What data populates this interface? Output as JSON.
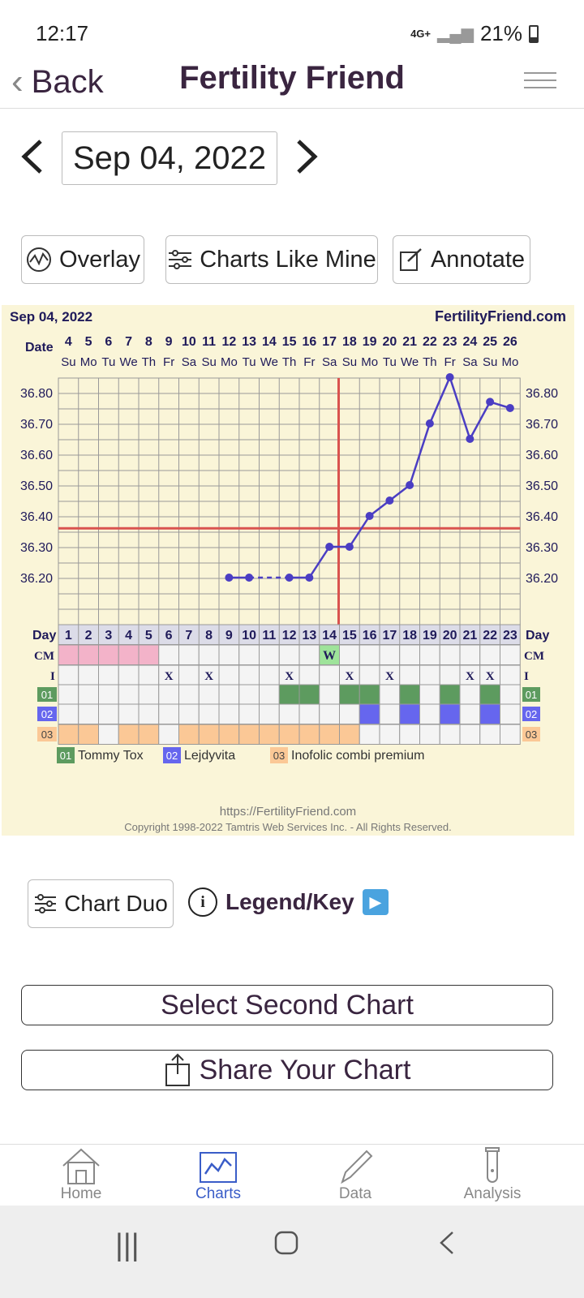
{
  "status": {
    "time": "12:17",
    "network": "4G+",
    "battery": "21%"
  },
  "header": {
    "back_label": "Back",
    "title": "Fertility Friend"
  },
  "date_nav": {
    "date": "Sep 04, 2022"
  },
  "actions": {
    "overlay": "Overlay",
    "charts_like_mine": "Charts Like Mine",
    "annotate": "Annotate"
  },
  "chart_data": {
    "type": "line",
    "title": "Sep 04, 2022",
    "brand": "FertilityFriend.com",
    "date_label": "Date",
    "dates": [
      "4",
      "5",
      "6",
      "7",
      "8",
      "9",
      "10",
      "11",
      "12",
      "13",
      "14",
      "15",
      "16",
      "17",
      "18",
      "19",
      "20",
      "21",
      "22",
      "23",
      "24",
      "25",
      "26"
    ],
    "weekdays": [
      "Su",
      "Mo",
      "Tu",
      "We",
      "Th",
      "Fr",
      "Sa",
      "Su",
      "Mo",
      "Tu",
      "We",
      "Th",
      "Fr",
      "Sa",
      "Su",
      "Mo",
      "Tu",
      "We",
      "Th",
      "Fr",
      "Sa",
      "Su",
      "Mo"
    ],
    "day_label": "Day",
    "days": [
      "1",
      "2",
      "3",
      "4",
      "5",
      "6",
      "7",
      "8",
      "9",
      "10",
      "11",
      "12",
      "13",
      "14",
      "15",
      "16",
      "17",
      "18",
      "19",
      "20",
      "21",
      "22",
      "23"
    ],
    "y_ticks": [
      "36.80",
      "36.70",
      "36.60",
      "36.50",
      "36.40",
      "36.30",
      "36.20"
    ],
    "ylim": [
      36.1,
      36.95
    ],
    "temps": [
      null,
      null,
      null,
      null,
      null,
      null,
      null,
      null,
      36.2,
      36.2,
      null,
      36.2,
      36.2,
      36.3,
      36.3,
      36.4,
      36.45,
      36.5,
      36.7,
      36.85,
      36.65,
      36.77,
      36.75
    ],
    "dashed_segments": [
      [
        9,
        11
      ],
      [
        20,
        22
      ]
    ],
    "coverline": 36.36,
    "ovulation_day_index": 14,
    "cm_label": "CM",
    "cm_pink_days": [
      0,
      1,
      2,
      3,
      4
    ],
    "cm_w_day": 13,
    "cm_w_text": "W",
    "i_label": "I",
    "i_marks": [
      5,
      7,
      11,
      14,
      16,
      20,
      21
    ],
    "i_mark_text": "X",
    "rows": {
      "r01": {
        "code": "01",
        "color": "#5d9b5f",
        "filled": [
          11,
          12,
          14,
          15,
          17,
          19,
          21
        ]
      },
      "r02": {
        "code": "02",
        "color": "#6666ee",
        "filled": [
          15,
          17,
          19,
          21
        ]
      },
      "r03": {
        "code": "03",
        "color": "#fbc896",
        "filled": [
          0,
          1,
          3,
          4,
          6,
          7,
          8,
          9,
          10,
          11,
          12,
          13,
          14
        ]
      }
    },
    "legend": [
      {
        "code": "01",
        "label": "Tommy Tox",
        "color": "#5d9b5f"
      },
      {
        "code": "02",
        "label": "Lejdyvita",
        "color": "#6666ee"
      },
      {
        "code": "03",
        "label": "Inofolic combi premium",
        "color": "#fbc896"
      }
    ],
    "url": "https://FertilityFriend.com",
    "copyright": "Copyright 1998-2022 Tamtris Web Services Inc. - All Rights Reserved.",
    "colors": {
      "line": "#4b3ec3",
      "coverline": "#d9534f",
      "grid": "#999999",
      "bg": "#faf5d8"
    }
  },
  "tools": {
    "chart_duo": "Chart Duo",
    "legend_key": "Legend/Key"
  },
  "buttons": {
    "select_second": "Select Second Chart",
    "share": "Share Your Chart"
  },
  "nav": {
    "home": "Home",
    "charts": "Charts",
    "data": "Data",
    "analysis": "Analysis"
  }
}
